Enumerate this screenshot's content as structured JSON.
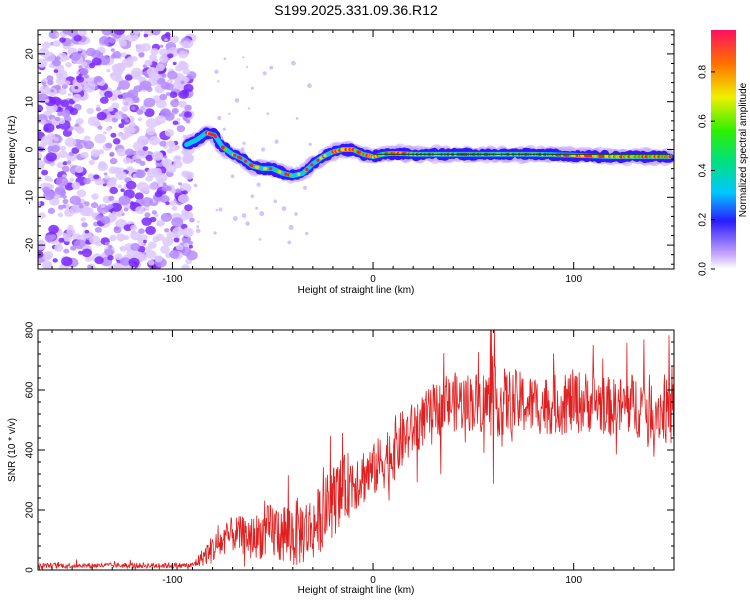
{
  "title": "S199.2025.331.09.36.R12",
  "colors": {
    "signal": "#e02020",
    "speckle": "#8a3cff",
    "axis": "#000000",
    "fit_line": "#1a4a1a"
  },
  "chart_data": [
    {
      "type": "heatmap",
      "title": "S199.2025.331.09.36.R12",
      "xlabel": "Height of straight line (km)",
      "ylabel": "Frequency (Hz)",
      "xlim": [
        -167,
        150
      ],
      "ylim": [
        -25,
        25
      ],
      "xticks": [
        -100,
        0,
        100
      ],
      "yticks": [
        -20,
        -10,
        0,
        10,
        20
      ],
      "noise_region_x": [
        -167,
        -90
      ],
      "signal_track": {
        "x": [
          -93,
          -88,
          -83,
          -79,
          -75,
          -70,
          -65,
          -60,
          -55,
          -50,
          -45,
          -40,
          -35,
          -30,
          -25,
          -20,
          -15,
          -10,
          -5,
          0,
          5,
          10,
          20,
          40,
          60,
          80,
          100,
          120,
          148
        ],
        "freq": [
          1,
          2,
          3.5,
          3,
          0.5,
          -1,
          -2,
          -3.5,
          -4,
          -4,
          -5,
          -5.5,
          -5,
          -3,
          -1.5,
          -0.5,
          0,
          0,
          -1,
          -1.5,
          -1,
          -0.8,
          -1,
          -1,
          -1,
          -1,
          -1.2,
          -1.5,
          -1.5
        ]
      },
      "fit_line_freq": -1.0,
      "fit_line_x": [
        0,
        148
      ],
      "colorbar": {
        "label": "Normalized spectral amplitude",
        "ticks": [
          "0.0",
          "0.2",
          "0.4",
          "0.6",
          "0.8"
        ],
        "range": [
          0,
          0.97
        ]
      }
    },
    {
      "type": "line",
      "xlabel": "Height of straight line (km)",
      "ylabel": "SNR (10 * v/v)",
      "xlim": [
        -167,
        150
      ],
      "ylim": [
        0,
        800
      ],
      "xticks": [
        -100,
        0,
        100
      ],
      "yticks": [
        0,
        200,
        400,
        600,
        800
      ],
      "series": [
        {
          "name": "SNR",
          "envelope_x": [
            -167,
            -90,
            -80,
            -70,
            -60,
            -50,
            -40,
            -30,
            -20,
            -10,
            0,
            10,
            20,
            30,
            40,
            50,
            60,
            70,
            80,
            90,
            100,
            110,
            120,
            130,
            140,
            150
          ],
          "envelope_mid": [
            15,
            15,
            70,
            120,
            110,
            130,
            120,
            140,
            230,
            300,
            330,
            400,
            470,
            530,
            560,
            560,
            560,
            560,
            550,
            550,
            560,
            560,
            540,
            550,
            540,
            520
          ],
          "envelope_amp": [
            8,
            10,
            50,
            60,
            70,
            100,
            120,
            110,
            120,
            110,
            90,
            110,
            90,
            90,
            100,
            100,
            120,
            110,
            100,
            100,
            110,
            100,
            100,
            110,
            110,
            110
          ]
        }
      ]
    }
  ]
}
